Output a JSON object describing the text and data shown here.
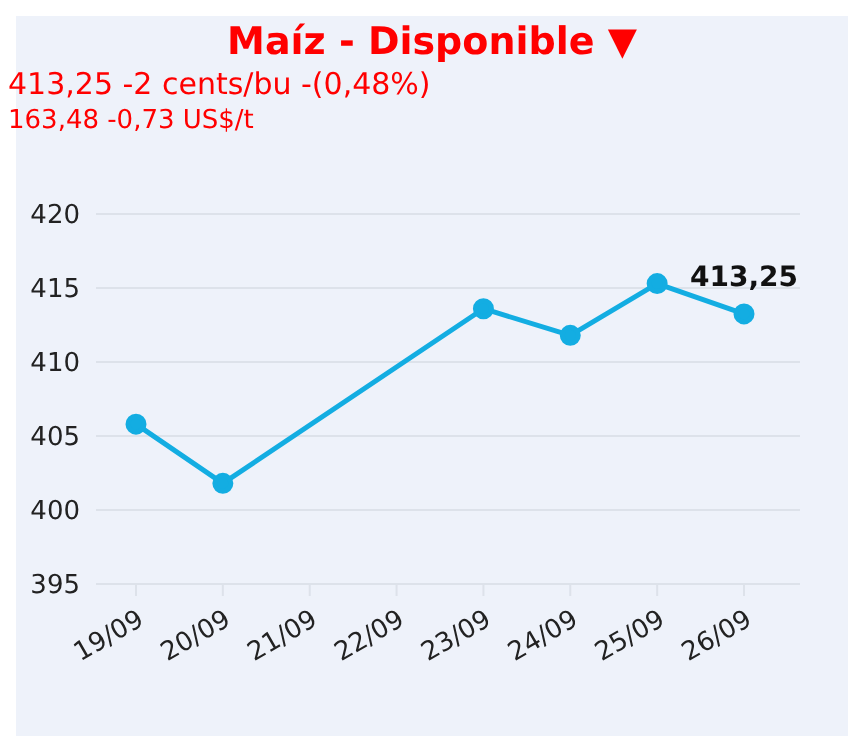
{
  "chart_data": {
    "type": "line",
    "title": "Maíz - Disponible ▼",
    "subtitle": "413,25 -2 cents/bu -(0,48%)",
    "annotations": [
      "163,48 -0,73 US$/t"
    ],
    "categories": [
      "19/09",
      "20/09",
      "21/09",
      "22/09",
      "23/09",
      "24/09",
      "25/09",
      "26/09"
    ],
    "series": [
      {
        "color": "#13ade2",
        "values": [
          405.8,
          401.8,
          null,
          null,
          413.6,
          411.8,
          415.3,
          413.25
        ],
        "value_labels": [
          null,
          null,
          null,
          null,
          null,
          null,
          null,
          "413,25"
        ]
      }
    ],
    "ylim": [
      395,
      420
    ],
    "yticks": [
      395,
      400,
      405,
      410,
      415,
      420
    ],
    "grid": "y",
    "marker": "circle",
    "line_style": "solid"
  }
}
